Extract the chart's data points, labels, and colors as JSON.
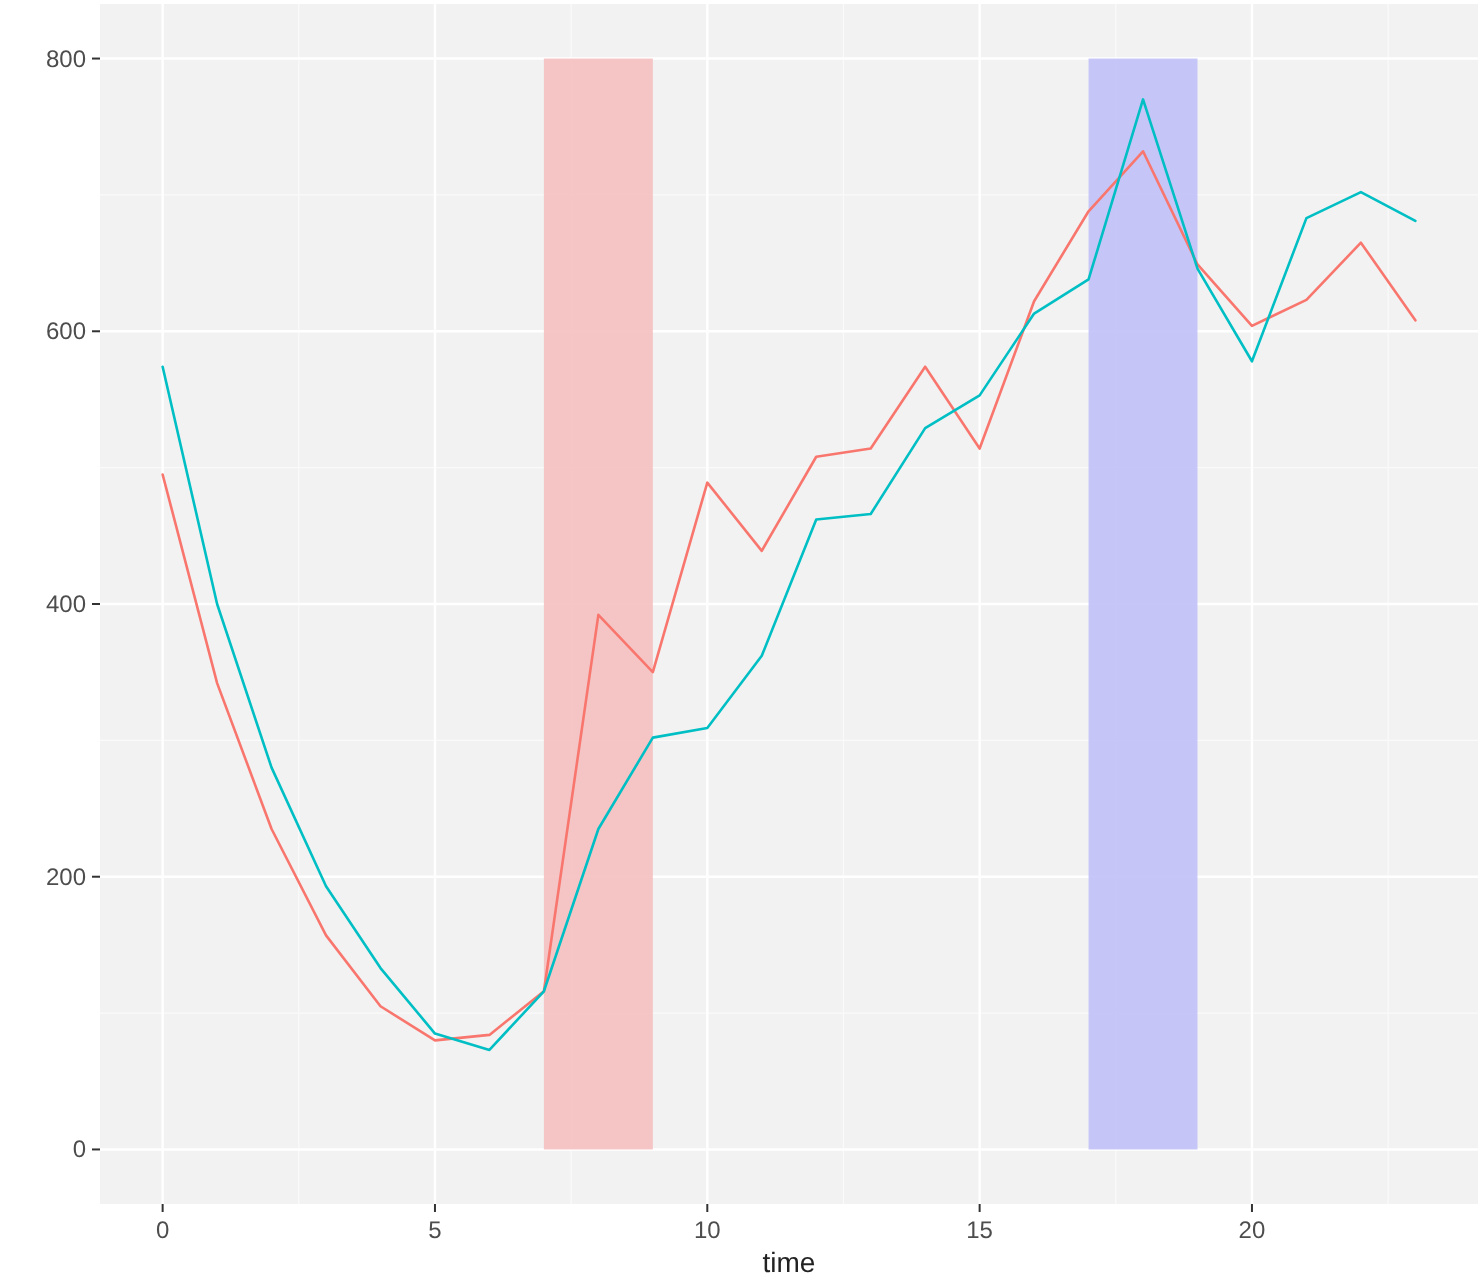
{
  "chart_data": {
    "type": "line",
    "xlabel": "time",
    "x": [
      0,
      1,
      2,
      3,
      4,
      5,
      6,
      7,
      8,
      9,
      10,
      11,
      12,
      13,
      14,
      15,
      16,
      17,
      18,
      19,
      20,
      21,
      22,
      23
    ],
    "series": [
      {
        "color": "#f8766d",
        "values": [
          495,
          342,
          235,
          157,
          105,
          80,
          84,
          116,
          392,
          350,
          489,
          439,
          508,
          514,
          574,
          514,
          622,
          688,
          732,
          649,
          604,
          623,
          665,
          608
        ]
      },
      {
        "color": "#00bfc4",
        "values": [
          574,
          400,
          280,
          193,
          133,
          85,
          73,
          116,
          235,
          302,
          309,
          362,
          462,
          466,
          529,
          553,
          613,
          638,
          770,
          646,
          578,
          683,
          702,
          681
        ]
      }
    ],
    "bands": [
      {
        "axis": "x",
        "from": 7,
        "to": 9,
        "color": "#f5c0c0"
      },
      {
        "axis": "x",
        "from": 17,
        "to": 19,
        "color": "#c0c0f7"
      }
    ],
    "xlim": [
      -1.15,
      24.15
    ],
    "ylim": [
      -40,
      840
    ],
    "xticks": [
      0,
      5,
      10,
      15,
      20
    ],
    "yticks": [
      0,
      200,
      400,
      600,
      800
    ],
    "grid": true,
    "line_style": "solid",
    "marker": "none"
  }
}
